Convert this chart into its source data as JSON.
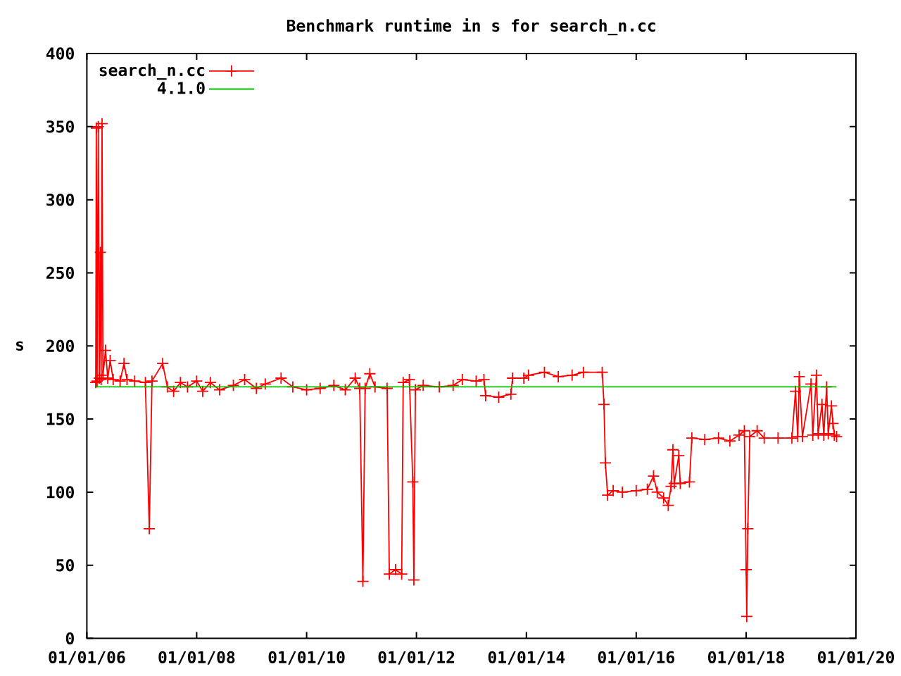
{
  "chart_data": {
    "type": "line",
    "title": "Benchmark runtime in s for search_n.cc",
    "ylabel": "s",
    "xlim": [
      "2006-01-01",
      "2020-01-01"
    ],
    "xticks": [
      {
        "value": "2006-01-01",
        "label": "01/01/06"
      },
      {
        "value": "2008-01-01",
        "label": "01/01/08"
      },
      {
        "value": "2010-01-01",
        "label": "01/01/10"
      },
      {
        "value": "2012-01-01",
        "label": "01/01/12"
      },
      {
        "value": "2014-01-01",
        "label": "01/01/14"
      },
      {
        "value": "2016-01-01",
        "label": "01/01/16"
      },
      {
        "value": "2018-01-01",
        "label": "01/01/18"
      },
      {
        "value": "2020-01-01",
        "label": "01/01/20"
      }
    ],
    "ylim": [
      0,
      400
    ],
    "yticks": [
      0,
      50,
      100,
      150,
      200,
      250,
      300,
      350,
      400
    ],
    "legend": "top left",
    "marker": "cross",
    "line_style": "solid",
    "series": [
      {
        "name": "search_n.cc",
        "color": "#ff0000",
        "x": [
          "2006-03-01",
          "2006-03-05",
          "2006-03-10",
          "2006-03-18",
          "2006-03-25",
          "2006-04-01",
          "2006-04-06",
          "2006-04-12",
          "2006-04-18",
          "2006-05-05",
          "2006-05-20",
          "2006-06-05",
          "2006-06-25",
          "2006-08-10",
          "2006-09-05",
          "2006-09-25",
          "2006-11-15",
          "2007-01-25",
          "2007-02-20",
          "2007-03-10",
          "2007-05-20",
          "2007-06-20",
          "2007-08-01",
          "2007-09-15",
          "2007-11-01",
          "2008-01-01",
          "2008-02-10",
          "2008-04-01",
          "2008-06-01",
          "2008-09-01",
          "2008-11-15",
          "2009-02-01",
          "2009-04-01",
          "2009-07-15",
          "2009-10-01",
          "2010-01-01",
          "2010-04-01",
          "2010-07-01",
          "2010-09-15",
          "2010-11-20",
          "2010-12-20",
          "2011-01-10",
          "2011-01-25",
          "2011-02-25",
          "2011-04-01",
          "2011-06-20",
          "2011-07-05",
          "2011-08-15",
          "2011-09-25",
          "2011-10-05",
          "2011-11-15",
          "2011-12-08",
          "2011-12-15",
          "2011-12-25",
          "2012-02-15",
          "2012-06-01",
          "2012-09-01",
          "2012-11-01",
          "2013-02-01",
          "2013-03-25",
          "2013-04-05",
          "2013-07-01",
          "2013-09-20",
          "2013-10-01",
          "2013-12-15",
          "2014-01-15",
          "2014-05-01",
          "2014-08-01",
          "2014-11-01",
          "2015-01-15",
          "2015-05-20",
          "2015-06-01",
          "2015-06-10",
          "2015-06-25",
          "2015-08-01",
          "2015-10-01",
          "2016-01-01",
          "2016-03-15",
          "2016-04-25",
          "2016-05-20",
          "2016-07-01",
          "2016-08-01",
          "2016-08-20",
          "2016-09-01",
          "2016-09-10",
          "2016-10-10",
          "2016-10-20",
          "2016-12-20",
          "2017-01-05",
          "2017-04-01",
          "2017-07-01",
          "2017-09-15",
          "2017-11-15",
          "2017-12-20",
          "2018-01-01",
          "2018-01-05",
          "2018-01-12",
          "2018-01-25",
          "2018-03-15",
          "2018-05-01",
          "2018-08-01",
          "2018-11-01",
          "2018-11-25",
          "2018-12-10",
          "2018-12-20",
          "2019-01-10",
          "2019-03-08",
          "2019-03-20",
          "2019-04-13",
          "2019-04-25",
          "2019-05-20",
          "2019-06-01",
          "2019-06-20",
          "2019-07-01",
          "2019-07-22",
          "2019-08-01",
          "2019-08-10",
          "2019-08-25"
        ],
        "values": [
          175,
          349,
          176,
          350,
          178,
          264,
          177,
          352,
          180,
          197,
          178,
          190,
          177,
          176,
          188,
          177,
          176,
          175,
          75,
          176,
          188,
          172,
          169,
          175,
          172,
          176,
          169,
          175,
          170,
          173,
          177,
          171,
          174,
          178,
          172,
          170,
          171,
          173,
          170,
          178,
          171,
          39,
          171,
          181,
          172,
          171,
          44,
          47,
          44,
          175,
          177,
          107,
          40,
          170,
          173,
          172,
          173,
          177,
          176,
          177,
          166,
          165,
          167,
          178,
          178,
          180,
          182,
          179,
          180,
          182,
          182,
          160,
          120,
          98,
          101,
          100,
          101,
          102,
          111,
          100,
          96,
          91,
          104,
          129,
          106,
          125,
          106,
          107,
          137,
          136,
          137,
          135,
          139,
          142,
          47,
          15,
          75,
          138,
          142,
          137,
          137,
          137,
          169,
          138,
          179,
          138,
          174,
          139,
          180,
          140,
          160,
          139,
          172,
          140,
          159,
          147,
          139,
          138
        ]
      },
      {
        "name": "4.1.0",
        "color": "#00c000",
        "marker": "none",
        "x": [
          "2006-03-01",
          "2019-08-25"
        ],
        "values": [
          172,
          172
        ]
      }
    ]
  }
}
